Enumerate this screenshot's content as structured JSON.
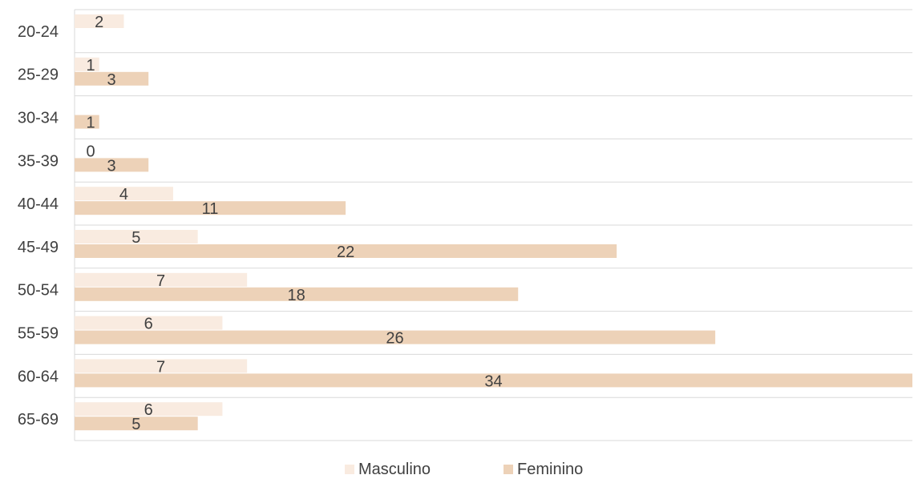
{
  "chart_data": {
    "type": "bar",
    "orientation": "horizontal",
    "categories": [
      "20-24",
      "25-29",
      "30-34",
      "35-39",
      "40-44",
      "45-49",
      "50-54",
      "55-59",
      "60-64",
      "65-69"
    ],
    "series": [
      {
        "name": "Masculino",
        "values": [
          2,
          1,
          null,
          0,
          4,
          5,
          7,
          6,
          7,
          6
        ],
        "color": "#f9ebe0"
      },
      {
        "name": "Feminino",
        "values": [
          null,
          3,
          1,
          3,
          11,
          22,
          18,
          26,
          34,
          5
        ],
        "color": "#edd2b8"
      }
    ],
    "xlim": [
      0,
      34
    ],
    "grid": true,
    "legend_position": "bottom"
  }
}
